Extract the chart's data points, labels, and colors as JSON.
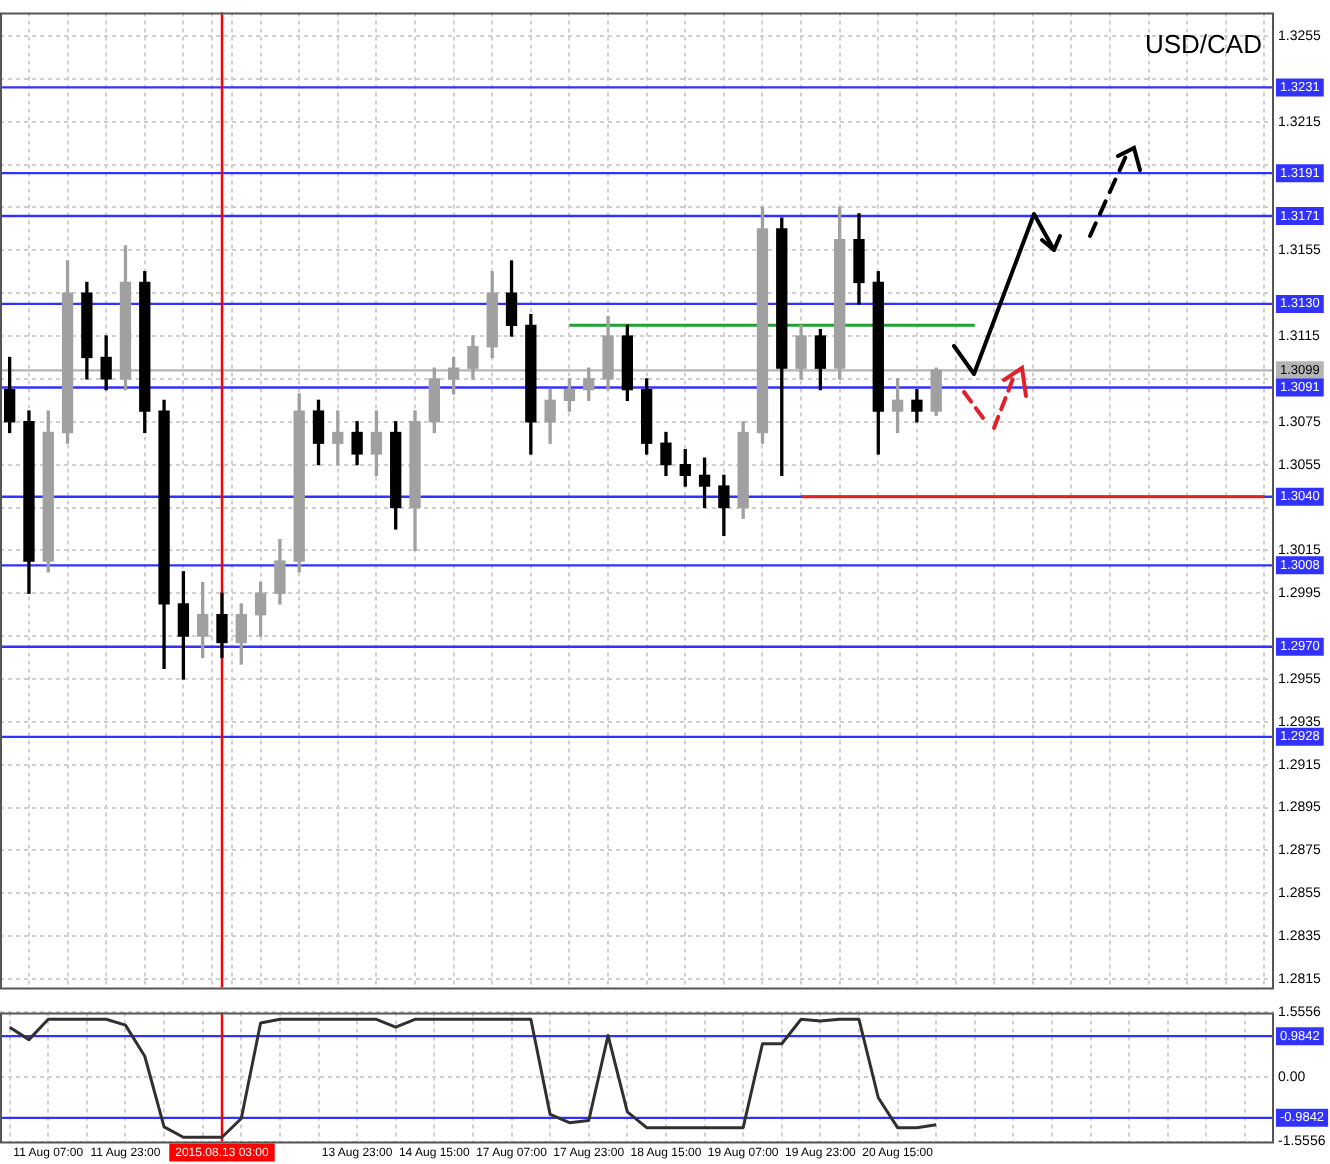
{
  "chart_data": [
    {
      "type": "candlestick",
      "title": "USD/CAD",
      "categories": [
        null,
        null,
        "11 Aug 07:00",
        null,
        null,
        null,
        "11 Aug 23:00",
        null,
        null,
        null,
        null,
        "2015.08.13 03:00",
        null,
        null,
        null,
        null,
        null,
        null,
        "13 Aug 23:00",
        null,
        null,
        null,
        "14 Aug 15:00",
        null,
        null,
        null,
        "17 Aug 07:00",
        null,
        null,
        null,
        "17 Aug 23:00",
        null,
        null,
        null,
        "18 Aug 15:00",
        null,
        null,
        null,
        "19 Aug 07:00",
        null,
        null,
        null,
        "19 Aug 23:00",
        null,
        null,
        null,
        "20 Aug 15:00",
        null,
        null,
        null,
        null,
        null,
        null,
        null,
        null,
        null,
        null,
        null,
        null,
        null,
        null,
        null,
        null,
        null,
        null,
        null
      ],
      "ohlc": [
        [
          1.309,
          1.3105,
          1.307,
          1.3075
        ],
        [
          1.3075,
          1.308,
          1.2995,
          1.301
        ],
        [
          1.301,
          1.308,
          1.3005,
          1.307
        ],
        [
          1.307,
          1.315,
          1.3065,
          1.3135
        ],
        [
          1.3135,
          1.314,
          1.3095,
          1.3105
        ],
        [
          1.3105,
          1.3115,
          1.309,
          1.3095
        ],
        [
          1.3095,
          1.3157,
          1.309,
          1.314
        ],
        [
          1.314,
          1.3145,
          1.307,
          1.308
        ],
        [
          1.308,
          1.3085,
          1.296,
          1.299
        ],
        [
          1.299,
          1.3005,
          1.2955,
          1.2975
        ],
        [
          1.2975,
          1.3,
          1.2965,
          1.2985
        ],
        [
          1.2985,
          1.2995,
          1.2965,
          1.2972
        ],
        [
          1.2972,
          1.299,
          1.2962,
          1.2985
        ],
        [
          1.2985,
          1.3,
          1.2975,
          1.2995
        ],
        [
          1.2995,
          1.302,
          1.299,
          1.301
        ],
        [
          1.301,
          1.3088,
          1.3005,
          1.308
        ],
        [
          1.308,
          1.3085,
          1.3055,
          1.3065
        ],
        [
          1.3065,
          1.308,
          1.3055,
          1.307
        ],
        [
          1.307,
          1.3075,
          1.3055,
          1.306
        ],
        [
          1.306,
          1.308,
          1.305,
          1.307
        ],
        [
          1.307,
          1.3075,
          1.3025,
          1.3035
        ],
        [
          1.3035,
          1.308,
          1.3015,
          1.3075
        ],
        [
          1.3075,
          1.31,
          1.307,
          1.3095
        ],
        [
          1.3095,
          1.3105,
          1.3088,
          1.31
        ],
        [
          1.31,
          1.3115,
          1.3095,
          1.311
        ],
        [
          1.311,
          1.3145,
          1.3105,
          1.3135
        ],
        [
          1.3135,
          1.315,
          1.3115,
          1.312
        ],
        [
          1.312,
          1.3125,
          1.306,
          1.3075
        ],
        [
          1.3075,
          1.309,
          1.3065,
          1.3085
        ],
        [
          1.3085,
          1.3095,
          1.308,
          1.309
        ],
        [
          1.309,
          1.31,
          1.3085,
          1.3095
        ],
        [
          1.3095,
          1.3124,
          1.309,
          1.3115
        ],
        [
          1.3115,
          1.312,
          1.3085,
          1.309
        ],
        [
          1.309,
          1.3095,
          1.306,
          1.3065
        ],
        [
          1.3065,
          1.307,
          1.305,
          1.3055
        ],
        [
          1.3055,
          1.3062,
          1.3045,
          1.305
        ],
        [
          1.305,
          1.3058,
          1.3035,
          1.3045
        ],
        [
          1.3045,
          1.305,
          1.3022,
          1.3035
        ],
        [
          1.3035,
          1.3075,
          1.303,
          1.307
        ],
        [
          1.307,
          1.3175,
          1.3065,
          1.3165
        ],
        [
          1.3165,
          1.317,
          1.305,
          1.31
        ],
        [
          1.31,
          1.312,
          1.3095,
          1.3115
        ],
        [
          1.3115,
          1.3118,
          1.309,
          1.31
        ],
        [
          1.31,
          1.3175,
          1.3095,
          1.316
        ],
        [
          1.316,
          1.3172,
          1.313,
          1.314
        ],
        [
          1.314,
          1.3145,
          1.306,
          1.308
        ],
        [
          1.308,
          1.3095,
          1.307,
          1.3085
        ],
        [
          1.3085,
          1.309,
          1.3075,
          1.308
        ],
        [
          1.308,
          1.31,
          1.3078,
          1.3099
        ],
        null,
        null,
        null,
        null,
        null,
        null,
        null,
        null,
        null,
        null,
        null,
        null,
        null,
        null,
        null,
        null,
        null
      ],
      "colors": [
        "#000000",
        "#000000",
        "#a0a0a0",
        "#a0a0a0",
        "#000000",
        "#000000",
        "#a0a0a0",
        "#000000",
        "#000000",
        "#000000",
        "#a0a0a0",
        "#000000",
        "#a0a0a0",
        "#a0a0a0",
        "#a0a0a0",
        "#a0a0a0",
        "#000000",
        "#a0a0a0",
        "#000000",
        "#a0a0a0",
        "#000000",
        "#a0a0a0",
        "#a0a0a0",
        "#a0a0a0",
        "#a0a0a0",
        "#a0a0a0",
        "#000000",
        "#000000",
        "#a0a0a0",
        "#a0a0a0",
        "#a0a0a0",
        "#a0a0a0",
        "#000000",
        "#000000",
        "#000000",
        "#000000",
        "#000000",
        "#000000",
        "#a0a0a0",
        "#a0a0a0",
        "#000000",
        "#a0a0a0",
        "#000000",
        "#a0a0a0",
        "#000000",
        "#000000",
        "#a0a0a0",
        "#000000",
        "#a0a0a0",
        null,
        null,
        null,
        null,
        null,
        null,
        null,
        null,
        null,
        null,
        null,
        null,
        null,
        null,
        null,
        null,
        null
      ],
      "series": [
        {
          "type": "line",
          "color": "#22a030",
          "values": [
            null,
            null,
            null,
            null,
            null,
            null,
            null,
            null,
            null,
            null,
            null,
            null,
            null,
            null,
            null,
            null,
            null,
            null,
            null,
            null,
            null,
            null,
            null,
            null,
            null,
            null,
            null,
            null,
            null,
            1.312,
            1.312,
            1.312,
            1.312,
            1.312,
            1.312,
            1.312,
            1.312,
            1.312,
            1.312,
            1.312,
            1.312,
            1.312,
            1.312,
            1.312,
            1.312,
            1.312,
            1.312,
            1.312,
            1.312,
            1.312,
            1.312,
            null,
            null,
            null,
            null,
            null,
            null,
            null,
            null,
            null,
            null,
            null,
            null,
            null,
            null,
            null
          ]
        },
        {
          "type": "line",
          "color": "#e0202a",
          "values": [
            null,
            null,
            null,
            null,
            null,
            null,
            null,
            null,
            null,
            null,
            null,
            null,
            null,
            null,
            null,
            null,
            null,
            null,
            null,
            null,
            null,
            null,
            null,
            null,
            null,
            null,
            null,
            null,
            null,
            null,
            null,
            null,
            null,
            null,
            null,
            null,
            null,
            null,
            null,
            null,
            null,
            1.304,
            1.304,
            1.304,
            1.304,
            1.304,
            1.304,
            1.304,
            1.304,
            1.304,
            1.304,
            1.304,
            1.304,
            1.304,
            1.304,
            1.304,
            1.304,
            1.304,
            1.304,
            1.304,
            1.304,
            1.304,
            1.304,
            1.304,
            1.304,
            1.304
          ]
        }
      ],
      "ylim": [
        1.2811,
        1.3266
      ],
      "yticks": [
        1.2815,
        1.2835,
        1.2855,
        1.2875,
        1.2895,
        1.2915,
        1.2935,
        1.2955,
        {
          "value": 1.2975,
          "label": null
        },
        1.2995,
        1.3015,
        {
          "value": 1.3035,
          "label": null
        },
        1.3055,
        1.3075,
        {
          "value": 1.3095,
          "label": null
        },
        1.3115,
        {
          "value": 1.3135,
          "label": null
        },
        1.3155,
        {
          "value": 1.3175,
          "label": null
        },
        {
          "value": 1.3195,
          "label": null
        },
        1.3215,
        {
          "value": 1.3235,
          "label": null
        },
        1.3255
      ],
      "ref_lines": [
        {
          "axis": "y",
          "value": 1.3231,
          "label": "1.3231",
          "color": "#3232ff"
        },
        {
          "axis": "y",
          "value": 1.3191,
          "label": "1.3191",
          "color": "#3232ff"
        },
        {
          "axis": "y",
          "value": 1.3171,
          "label": "1.3171",
          "color": "#3232ff"
        },
        {
          "axis": "y",
          "value": 1.313,
          "label": "1.3130",
          "color": "#3232ff"
        },
        {
          "axis": "y",
          "value": 1.3099,
          "label": "1.3099",
          "color": "#b4b4b4"
        },
        {
          "axis": "y",
          "value": 1.3091,
          "label": "1.3091",
          "color": "#3232ff"
        },
        {
          "axis": "y",
          "value": 1.304,
          "label": "1.3040",
          "color": "#3232ff"
        },
        {
          "axis": "y",
          "value": 1.3008,
          "label": "1.3008",
          "color": "#3232ff"
        },
        {
          "axis": "y",
          "value": 1.297,
          "label": "1.2970",
          "color": "#3232ff"
        },
        {
          "axis": "y",
          "value": 1.2928,
          "label": "1.2928",
          "color": "#3232ff"
        },
        {
          "axis": "x",
          "value": "2015.08.13 03:00",
          "color": "#ff0000"
        }
      ],
      "grid": true,
      "tick_labels": "y"
    },
    {
      "type": "line",
      "categories": [
        null,
        null,
        "11 Aug 07:00",
        null,
        null,
        null,
        "11 Aug 23:00",
        null,
        null,
        null,
        null,
        "2015.08.13 03:00",
        null,
        null,
        null,
        null,
        null,
        null,
        "13 Aug 23:00",
        null,
        null,
        null,
        "14 Aug 15:00",
        null,
        null,
        null,
        "17 Aug 07:00",
        null,
        null,
        null,
        "17 Aug 23:00",
        null,
        null,
        null,
        "18 Aug 15:00",
        null,
        null,
        null,
        "19 Aug 07:00",
        null,
        null,
        null,
        "19 Aug 23:00",
        null,
        null,
        null,
        "20 Aug 15:00",
        null,
        null,
        null,
        null,
        null,
        null,
        null,
        null,
        null,
        null,
        null,
        null,
        null,
        null,
        null,
        null,
        null,
        null,
        null
      ],
      "values": [
        1.2,
        0.9,
        1.39,
        1.39,
        1.39,
        1.39,
        1.25,
        0.5,
        -1.2,
        -1.45,
        -1.45,
        -1.45,
        -1.0,
        1.3,
        1.39,
        1.39,
        1.39,
        1.39,
        1.39,
        1.39,
        1.2,
        1.39,
        1.39,
        1.39,
        1.39,
        1.39,
        1.39,
        1.39,
        -0.9,
        -1.1,
        -1.05,
        1.0,
        -0.84,
        -1.22,
        -1.22,
        -1.22,
        -1.22,
        -1.22,
        -1.22,
        0.8,
        0.8,
        1.39,
        1.35,
        1.39,
        1.39,
        -0.5,
        -1.22,
        -1.22,
        -1.15,
        null,
        null,
        null,
        null,
        null,
        null,
        null,
        null,
        null,
        null,
        null,
        null,
        null,
        null,
        null,
        null,
        null
      ],
      "color": "#303030",
      "ylim": [
        -1.5556,
        1.5556
      ],
      "yticks": [
        1.5556,
        {
          "value": 0,
          "label": "0.00"
        },
        -1.5556
      ],
      "ref_lines": [
        {
          "axis": "y",
          "value": 0.9842,
          "label": "0.9842",
          "color": "#3232ff"
        },
        {
          "axis": "y",
          "value": -0.9842,
          "label": "-0.9842",
          "color": "#3232ff"
        },
        {
          "axis": "x",
          "value": "2015.08.13 03:00",
          "color": "#ff0000"
        }
      ],
      "grid": true
    }
  ]
}
